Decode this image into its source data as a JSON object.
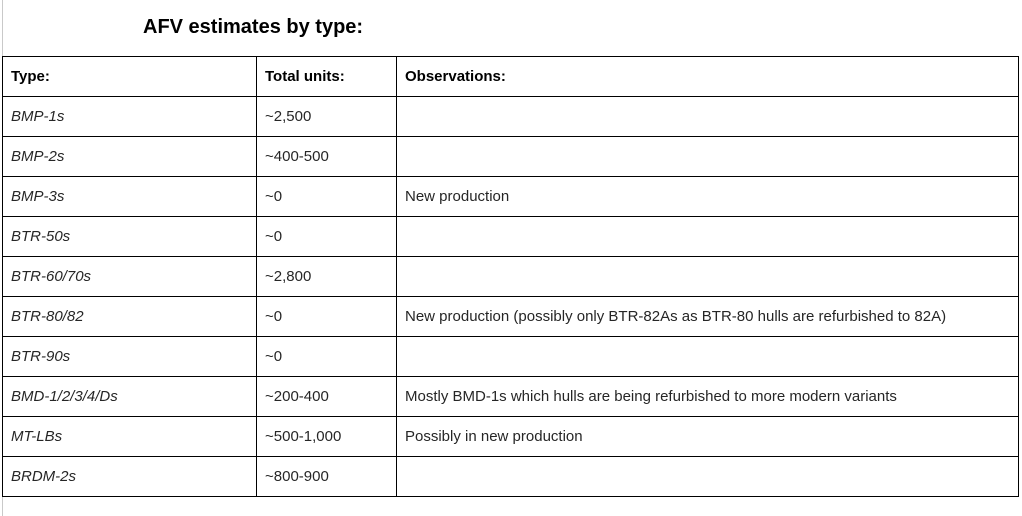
{
  "page": {
    "title": "AFV estimates by type:"
  },
  "colors": {
    "table_border": "#000000",
    "body_text": "#262626",
    "heading_text": "#000000",
    "page_edge_line": "#c9c9c9",
    "background": "#ffffff"
  },
  "table": {
    "columns": {
      "type": "Type:",
      "units": "Total units:",
      "obs": "Observations:"
    },
    "rows": [
      {
        "type": "BMP-1s",
        "units": "~2,500",
        "obs": ""
      },
      {
        "type": "BMP-2s",
        "units": "~400-500",
        "obs": ""
      },
      {
        "type": "BMP-3s",
        "units": "~0",
        "obs": "New production"
      },
      {
        "type": "BTR-50s",
        "units": "~0",
        "obs": ""
      },
      {
        "type": "BTR-60/70s",
        "units": "~2,800",
        "obs": ""
      },
      {
        "type": "BTR-80/82",
        "units": "~0",
        "obs": "New production (possibly only BTR-82As as BTR-80 hulls are refurbished to 82A)"
      },
      {
        "type": "BTR-90s",
        "units": "~0",
        "obs": ""
      },
      {
        "type": "BMD-1/2/3/4/Ds",
        "units": "~200-400",
        "obs": "Mostly BMD-1s which hulls are being refurbished to more modern variants"
      },
      {
        "type": "MT-LBs",
        "units": "~500-1,000",
        "obs": "Possibly in new production"
      },
      {
        "type": "BRDM-2s",
        "units": "~800-900",
        "obs": ""
      }
    ]
  }
}
